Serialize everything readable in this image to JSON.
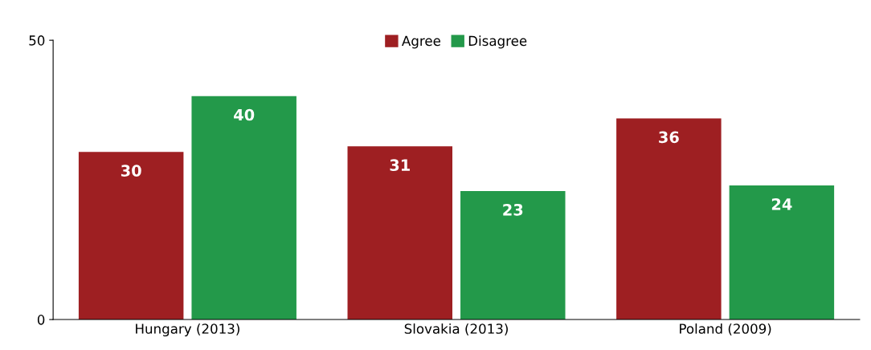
{
  "chart_data": {
    "type": "bar",
    "categories": [
      "Hungary (2013)",
      "Slovakia (2013)",
      "Poland (2009)"
    ],
    "series": [
      {
        "name": "Agree",
        "color": "#9e1f22",
        "values": [
          30,
          31,
          36
        ]
      },
      {
        "name": "Disagree",
        "color": "#23994a",
        "values": [
          40,
          23,
          24
        ]
      }
    ],
    "ylim": [
      0,
      50
    ],
    "yticks": [
      0,
      50
    ],
    "data_labels": true,
    "legend": "top",
    "grid": false
  }
}
